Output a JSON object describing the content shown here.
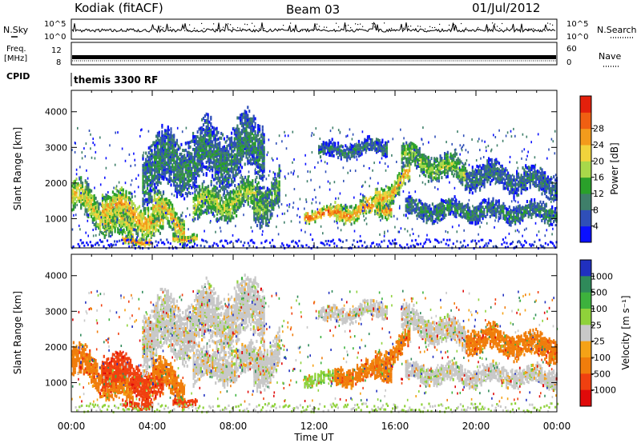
{
  "header": {
    "station": "Kodiak (fitACF)",
    "beam": "Beam 03",
    "date": "01/Jul/2012"
  },
  "strips": {
    "nsky_label": "N.Sky",
    "nsearch_label": "N.Search",
    "noise_ticks_left": [
      "10^5",
      "10^0"
    ],
    "noise_ticks_right": [
      "10^5",
      "10^0"
    ],
    "freq_label": "Freq.",
    "freq_unit": "[MHz]",
    "freq_ticks": [
      "12",
      "8"
    ],
    "nave_label": "Nave",
    "nave_ticks": [
      "60",
      "0"
    ],
    "cpid_label": "CPID",
    "cpid_value": "themis 3300 RF"
  },
  "chart_data": [
    {
      "type": "heatmap",
      "name": "power_panel",
      "ylabel": "Slant Range [km]",
      "xlabel": "Time UT",
      "y_ticks": [
        1000,
        2000,
        3000,
        4000
      ],
      "ylim": [
        180,
        4600
      ],
      "x_ticks": [
        "00:00",
        "04:00",
        "08:00",
        "12:00",
        "16:00",
        "20:00",
        "00:00"
      ],
      "xlim_hours": [
        0,
        24
      ],
      "colorbar": {
        "label": "Power [dB]",
        "ticks": [
          "4",
          "8",
          "12",
          "16",
          "20",
          "24",
          "28"
        ],
        "colors": [
          "#0a10ff",
          "#2f4fb8",
          "#3f7f6a",
          "#2aa02a",
          "#a8d84a",
          "#f1d33c",
          "#f39b1c",
          "#f05f12",
          "#e3200c"
        ]
      }
    },
    {
      "type": "heatmap",
      "name": "velocity_panel",
      "ylabel": "Slant Range [km]",
      "xlabel": "Time UT",
      "y_ticks": [
        1000,
        2000,
        3000,
        4000
      ],
      "ylim": [
        180,
        4600
      ],
      "x_ticks": [
        "00:00",
        "04:00",
        "08:00",
        "12:00",
        "16:00",
        "20:00",
        "00:00"
      ],
      "xlim_hours": [
        0,
        24
      ],
      "colorbar": {
        "label": "Velocity [m s⁻¹]",
        "ticks": [
          "1000",
          "500",
          "100",
          "25",
          "-25",
          "-100",
          "-500",
          "-1000"
        ],
        "colors": [
          "#2030c0",
          "#2f8a5a",
          "#3db23d",
          "#8fd23a",
          "#c8c8c8",
          "#f5a216",
          "#f07d0c",
          "#f04010",
          "#e00a0a"
        ]
      }
    }
  ],
  "x_axis": {
    "label": "Time UT",
    "ticks": [
      "00:00",
      "04:00",
      "08:00",
      "12:00",
      "16:00",
      "20:00",
      "00:00"
    ]
  }
}
